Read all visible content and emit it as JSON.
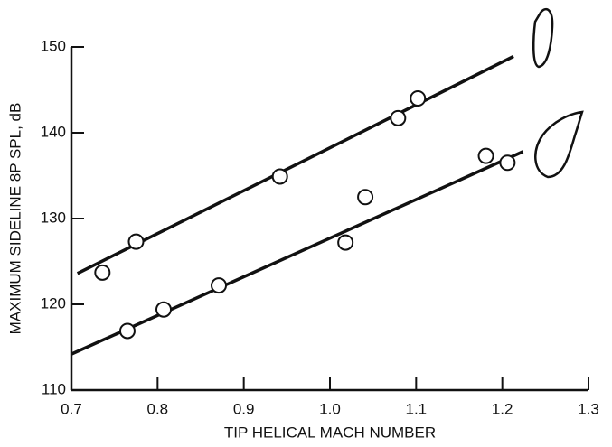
{
  "chart_data": {
    "type": "scatter",
    "x_label": "TIP HELICAL MACH NUMBER",
    "y_label": "MAXIMUM SIDELINE 8P SPL, dB",
    "xlim": [
      0.7,
      1.3
    ],
    "xticks": [
      0.7,
      0.8,
      0.9,
      {
        "value": 1,
        "label": "1.0"
      },
      1.1,
      1.2,
      1.3
    ],
    "ylim": [
      110,
      150
    ],
    "yticks": [
      110,
      120,
      130,
      140,
      150
    ],
    "series": [
      {
        "color": "#111111",
        "x": [
          0.736,
          0.775,
          0.942,
          1.079,
          1.102
        ],
        "values": [
          123.7,
          127.3,
          134.9,
          141.7,
          144.0
        ],
        "fit": {
          "x": [
            0.707,
            1.213
          ],
          "values": [
            123.6,
            148.9
          ]
        }
      },
      {
        "color": "#111111",
        "x": [
          0.765,
          0.807,
          0.871,
          1.018,
          1.041,
          1.181,
          1.206
        ],
        "values": [
          116.9,
          119.4,
          122.2,
          127.2,
          132.5,
          137.3,
          136.5
        ],
        "fit": {
          "x": [
            0.7,
            1.224
          ],
          "values": [
            114.2,
            137.8
          ]
        }
      }
    ]
  }
}
